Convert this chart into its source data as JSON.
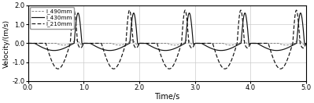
{
  "title": "",
  "xlabel": "Time/s",
  "ylabel": "Velocity/(m/s)",
  "xlim": [
    0.0,
    5.0
  ],
  "ylim": [
    -2.0,
    2.0
  ],
  "yticks": [
    -2.0,
    -1.0,
    0.0,
    1.0,
    2.0
  ],
  "xticks": [
    0.0,
    1.0,
    2.0,
    3.0,
    4.0,
    5.0
  ],
  "legend_labels": [
    "l_490mm",
    "l_430mm",
    "l_210mm"
  ],
  "background_color": "#ffffff",
  "grid_color": "#cccccc"
}
